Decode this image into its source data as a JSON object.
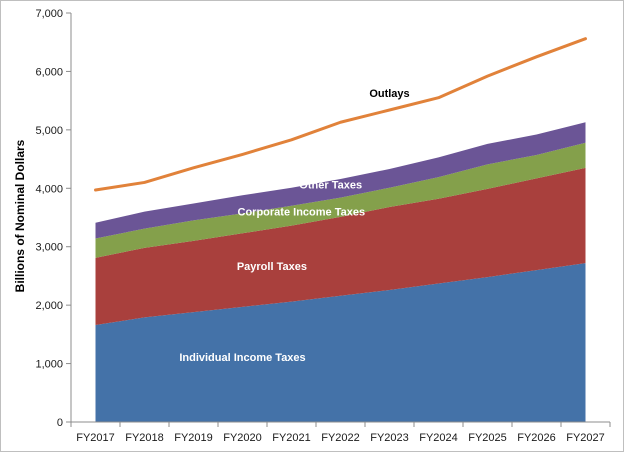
{
  "chart_data": {
    "type": "area",
    "categories": [
      "FY2017",
      "FY2018",
      "FY2019",
      "FY2020",
      "FY2021",
      "FY2022",
      "FY2023",
      "FY2024",
      "FY2025",
      "FY2026",
      "FY2027"
    ],
    "series": [
      {
        "name": "Individual Income Taxes",
        "values": [
          1660,
          1790,
          1880,
          1970,
          2060,
          2160,
          2260,
          2370,
          2480,
          2600,
          2720
        ],
        "color": "#4472a8",
        "label_color": "#ffffff"
      },
      {
        "name": "Payroll Taxes",
        "values": [
          1150,
          1190,
          1220,
          1260,
          1300,
          1350,
          1420,
          1450,
          1510,
          1570,
          1630
        ],
        "color": "#a9403d",
        "label_color": "#ffffff"
      },
      {
        "name": "Corporate Income Taxes",
        "values": [
          330,
          330,
          350,
          340,
          340,
          330,
          330,
          370,
          420,
          400,
          430
        ],
        "color": "#84a04b",
        "label_color": "#ffffff"
      },
      {
        "name": "Other Taxes",
        "values": [
          270,
          290,
          290,
          310,
          310,
          320,
          320,
          340,
          350,
          350,
          350
        ],
        "color": "#6b5596",
        "label_color": "#ffffff"
      }
    ],
    "line_series": {
      "name": "Outlays",
      "values": [
        3970,
        4100,
        4350,
        4580,
        4830,
        5130,
        5340,
        5550,
        5920,
        6250,
        6560
      ],
      "color": "#e1823a",
      "label_color": "#000000"
    },
    "ylabel": "Billions of Nominal Dollars",
    "xlabel": "",
    "ylim": [
      0,
      7000
    ],
    "yticks": [
      "0",
      "1,000",
      "2,000",
      "3,000",
      "4,000",
      "5,000",
      "6,000",
      "7,000"
    ],
    "ytick_values": [
      0,
      1000,
      2000,
      3000,
      4000,
      5000,
      6000,
      7000
    ],
    "grid": false,
    "legend": "none",
    "label_anchors": [
      {
        "text": "Individual Income Taxes",
        "x_index": 3,
        "y": 1040,
        "color": "#ffffff"
      },
      {
        "text": "Payroll Taxes",
        "x_index": 3.6,
        "y": 2600,
        "color": "#ffffff"
      },
      {
        "text": "Corporate Income Taxes",
        "x_index": 4.2,
        "y": 3530,
        "color": "#ffffff"
      },
      {
        "text": "Other Taxes",
        "x_index": 4.8,
        "y": 4000,
        "color": "#ffffff"
      },
      {
        "text": "Outlays",
        "x_index": 6,
        "y": 5560,
        "color": "#000000"
      }
    ]
  }
}
